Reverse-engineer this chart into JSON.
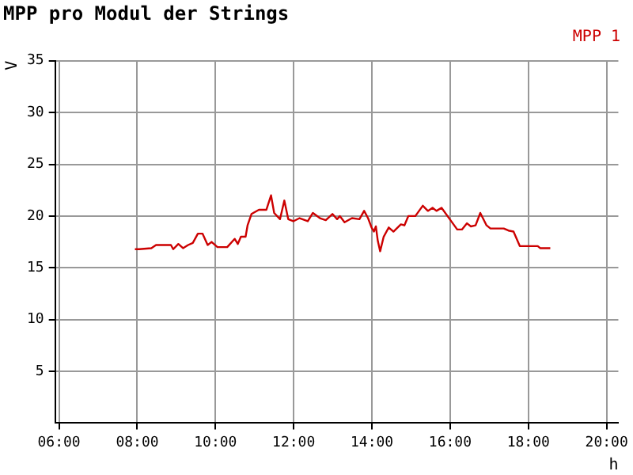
{
  "chart_data": {
    "type": "line",
    "title": "MPP pro Modul der Strings",
    "xlabel": "h",
    "ylabel": "V",
    "xlim": [
      5.9,
      20.3
    ],
    "xticks": [
      {
        "value": 6,
        "label": "06:00"
      },
      {
        "value": 8,
        "label": "08:00"
      },
      {
        "value": 10,
        "label": "10:00"
      },
      {
        "value": 12,
        "label": "12:00"
      },
      {
        "value": 14,
        "label": "14:00"
      },
      {
        "value": 16,
        "label": "16:00"
      },
      {
        "value": 18,
        "label": "18:00"
      },
      {
        "value": 20,
        "label": "20:00"
      }
    ],
    "ylim": [
      0,
      35
    ],
    "yticks": [
      5,
      10,
      15,
      20,
      25,
      30,
      35
    ],
    "grid": true,
    "legend": "top right",
    "marker": "none",
    "line_style": "solid",
    "series": [
      {
        "name": "MPP 1",
        "color": "#cc0000",
        "x": [
          7.94,
          8.05,
          8.36,
          8.48,
          8.86,
          8.92,
          9.05,
          9.17,
          9.3,
          9.42,
          9.55,
          9.67,
          9.8,
          9.9,
          10.05,
          10.3,
          10.49,
          10.57,
          10.65,
          10.77,
          10.82,
          10.92,
          11.11,
          11.3,
          11.42,
          11.5,
          11.65,
          11.76,
          11.86,
          11.99,
          12.15,
          12.36,
          12.49,
          12.67,
          12.82,
          12.99,
          13.11,
          13.18,
          13.3,
          13.49,
          13.68,
          13.8,
          13.9,
          13.99,
          14.05,
          14.1,
          14.15,
          14.21,
          14.3,
          14.43,
          14.55,
          14.74,
          14.83,
          14.93,
          15.11,
          15.3,
          15.43,
          15.55,
          15.65,
          15.78,
          15.99,
          16.18,
          16.3,
          16.43,
          16.53,
          16.65,
          16.77,
          16.93,
          17.03,
          17.37,
          17.49,
          17.62,
          17.78,
          18.24,
          18.3,
          18.56
        ],
        "values": [
          16.8,
          16.8,
          16.9,
          17.2,
          17.2,
          16.8,
          17.3,
          16.9,
          17.2,
          17.4,
          18.3,
          18.3,
          17.2,
          17.5,
          17.0,
          17.0,
          17.8,
          17.3,
          18.0,
          18.0,
          19.1,
          20.2,
          20.6,
          20.6,
          22.0,
          20.3,
          19.7,
          21.5,
          19.7,
          19.5,
          19.8,
          19.5,
          20.3,
          19.8,
          19.6,
          20.2,
          19.7,
          20.0,
          19.4,
          19.8,
          19.7,
          20.5,
          19.8,
          18.9,
          18.5,
          19.0,
          17.6,
          16.6,
          18.0,
          18.9,
          18.5,
          19.2,
          19.1,
          20.0,
          20.0,
          21.0,
          20.5,
          20.8,
          20.5,
          20.8,
          19.7,
          18.7,
          18.7,
          19.3,
          19.0,
          19.1,
          20.3,
          19.1,
          18.8,
          18.8,
          18.6,
          18.5,
          17.1,
          17.1,
          16.9,
          16.9
        ]
      }
    ]
  }
}
